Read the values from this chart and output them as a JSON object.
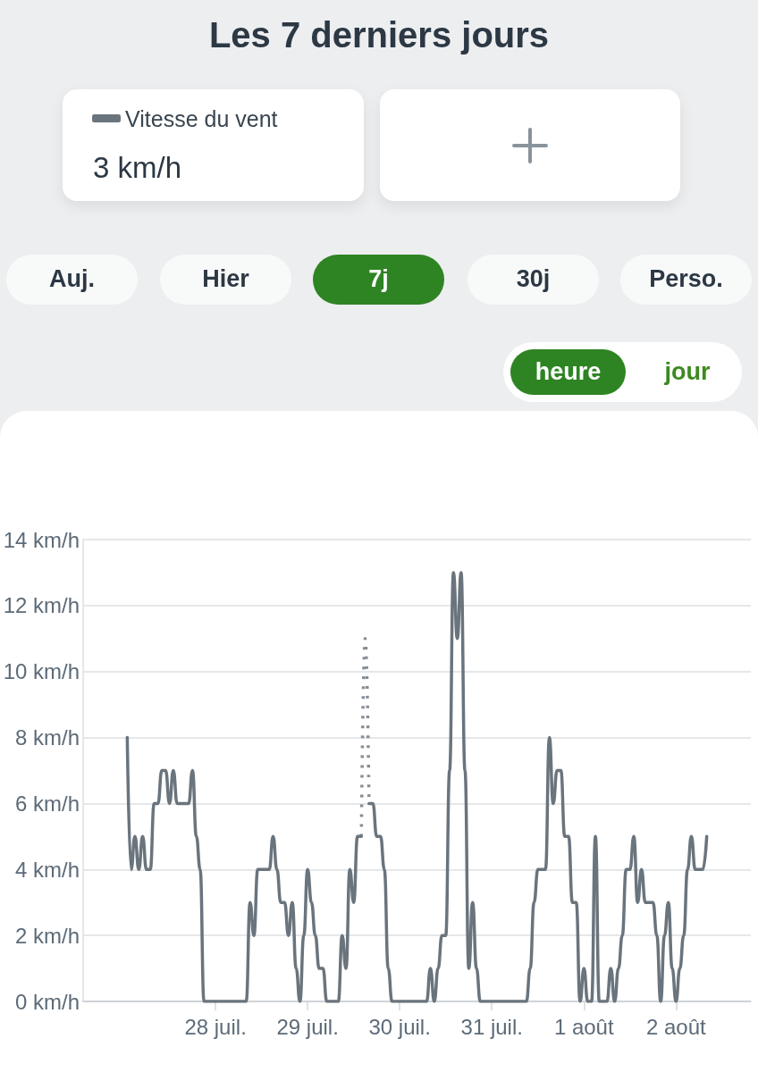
{
  "chart_data": {
    "type": "line",
    "title": "Les 7 derniers jours",
    "annotations": [
      "3 km/h",
      "Auj.",
      "Hier",
      "7j",
      "30j",
      "Perso.",
      "heure",
      "jour"
    ],
    "xlim": [
      "--07-26T13:30",
      "--08-02T19:30"
    ],
    "xticks": [
      {
        "value": "--07-28",
        "label": "28 juil."
      },
      {
        "value": "--07-29",
        "label": "29 juil."
      },
      {
        "value": "--07-30",
        "label": "30 juil."
      },
      {
        "value": "--07-31",
        "label": "31 juil."
      },
      {
        "value": "--08-01",
        "label": "1 août"
      },
      {
        "value": "--08-02",
        "label": "2 août"
      }
    ],
    "ylim": [
      0,
      14
    ],
    "yticks": [
      {
        "value": 0,
        "label": "0 km/h"
      },
      {
        "value": 2,
        "label": "2 km/h"
      },
      {
        "value": 4,
        "label": "4 km/h"
      },
      {
        "value": 6,
        "label": "6 km/h"
      },
      {
        "value": 8,
        "label": "8 km/h"
      },
      {
        "value": 10,
        "label": "10 km/h"
      },
      {
        "value": 12,
        "label": "12 km/h"
      },
      {
        "value": 14,
        "label": "14 km/h"
      }
    ],
    "grid": "y",
    "legend": "top left",
    "marker": "none",
    "series": [
      {
        "name": "Vitesse du vent",
        "color": "#6a747d",
        "line_style": "solid",
        "x": [
          "--07-27T01:00",
          "--07-27T02:00",
          "--07-27T03:00",
          "--07-27T04:00",
          "--07-27T05:00",
          "--07-27T06:00",
          "--07-27T07:00",
          "--07-27T08:00",
          "--07-27T09:00",
          "--07-27T10:00",
          "--07-27T11:00",
          "--07-27T12:00",
          "--07-27T13:00",
          "--07-27T14:00",
          "--07-27T15:00",
          "--07-27T16:00",
          "--07-27T17:00",
          "--07-27T18:00",
          "--07-27T19:00",
          "--07-27T20:00",
          "--07-27T21:00",
          "--07-28T08:00",
          "--07-28T09:00",
          "--07-28T10:00",
          "--07-28T11:00",
          "--07-28T12:00",
          "--07-28T13:00",
          "--07-28T14:00",
          "--07-28T15:00",
          "--07-28T16:00",
          "--07-28T17:00",
          "--07-28T18:00",
          "--07-28T19:00",
          "--07-28T20:00",
          "--07-28T21:00",
          "--07-28T22:00",
          "--07-28T23:00",
          "--07-29T00:00",
          "--07-29T01:00",
          "--07-29T02:00",
          "--07-29T03:00",
          "--07-29T04:00",
          "--07-29T05:00",
          "--07-29T08:00",
          "--07-29T09:00",
          "--07-29T10:00",
          "--07-29T11:00",
          "--07-29T12:00",
          "--07-29T13:00",
          "--07-29T14:00",
          "--07-29T15:00",
          "--07-29T16:00",
          "--07-29T17:00",
          "--07-29T18:00",
          "--07-29T19:00",
          "--07-29T20:00",
          "--07-29T21:00",
          "--07-29T22:00",
          "--07-30T07:00",
          "--07-30T08:00",
          "--07-30T09:00",
          "--07-30T10:00",
          "--07-30T11:00",
          "--07-30T12:00",
          "--07-30T13:00",
          "--07-30T14:00",
          "--07-30T15:00",
          "--07-30T16:00",
          "--07-30T17:00",
          "--07-30T18:00",
          "--07-30T19:00",
          "--07-30T20:00",
          "--07-30T21:00",
          "--07-31T09:00",
          "--07-31T10:00",
          "--07-31T11:00",
          "--07-31T12:00",
          "--07-31T13:00",
          "--07-31T14:00",
          "--07-31T15:00",
          "--07-31T16:00",
          "--07-31T17:00",
          "--07-31T18:00",
          "--07-31T19:00",
          "--07-31T20:00",
          "--07-31T21:00",
          "--07-31T22:00",
          "--07-31T23:00",
          "--08-01T00:00",
          "--08-01T01:00",
          "--08-01T02:00",
          "--08-01T03:00",
          "--08-01T04:00",
          "--08-01T05:00",
          "--08-01T06:00",
          "--08-01T07:00",
          "--08-01T08:00",
          "--08-01T09:00",
          "--08-01T10:00",
          "--08-01T11:00",
          "--08-01T12:00",
          "--08-01T13:00",
          "--08-01T14:00",
          "--08-01T15:00",
          "--08-01T16:00",
          "--08-01T17:00",
          "--08-01T18:00",
          "--08-01T19:00",
          "--08-01T20:00",
          "--08-01T21:00",
          "--08-01T22:00",
          "--08-01T23:00",
          "--08-02T00:00",
          "--08-02T01:00",
          "--08-02T02:00",
          "--08-02T03:00",
          "--08-02T04:00",
          "--08-02T05:00",
          "--08-02T06:00",
          "--08-02T07:00",
          "--08-02T08:00"
        ],
        "values": [
          8,
          4,
          5,
          4,
          5,
          4,
          4,
          6,
          6,
          7,
          7,
          6,
          7,
          6,
          6,
          6,
          6,
          7,
          5,
          4,
          0,
          0,
          3,
          2,
          4,
          4,
          4,
          4,
          5,
          4,
          3,
          3,
          2,
          3,
          1,
          0,
          2,
          4,
          3,
          2,
          1,
          1,
          0,
          0,
          2,
          1,
          4,
          3,
          5,
          5,
          null,
          6,
          6,
          5,
          5,
          4,
          1,
          0,
          0,
          1,
          0,
          1,
          2,
          2,
          7,
          13,
          11,
          13,
          7,
          1,
          3,
          1,
          0,
          0,
          1,
          3,
          4,
          4,
          4,
          8,
          6,
          7,
          7,
          5,
          5,
          3,
          3,
          0,
          1,
          0,
          0,
          5,
          0,
          0,
          0,
          1,
          0,
          1,
          2,
          4,
          4,
          5,
          3,
          4,
          3,
          3,
          3,
          2,
          0,
          2,
          3,
          1,
          0,
          1,
          2,
          4,
          5,
          4,
          4,
          4,
          5
        ]
      },
      {
        "color": "#858d95",
        "line_style": "dotted",
        "x": [
          "--07-29T14:00",
          "--07-29T15:00",
          "--07-29T16:00"
        ],
        "values": [
          5,
          11,
          6
        ]
      }
    ]
  }
}
